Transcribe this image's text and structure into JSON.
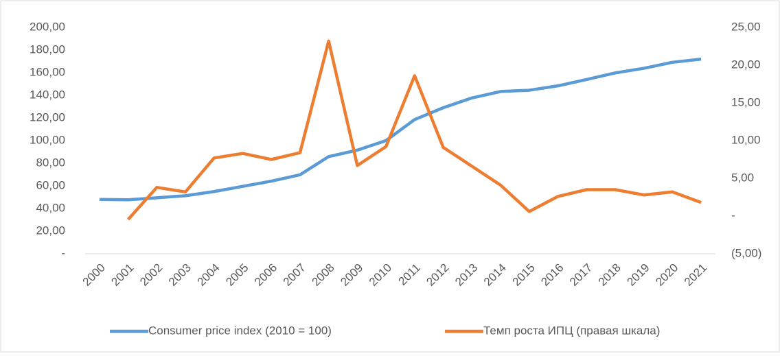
{
  "chart_data": {
    "type": "line",
    "categories": [
      "2000",
      "2001",
      "2002",
      "2003",
      "2004",
      "2005",
      "2006",
      "2007",
      "2008",
      "2009",
      "2010",
      "2011",
      "2012",
      "2013",
      "2014",
      "2015",
      "2016",
      "2017",
      "2018",
      "2019",
      "2020",
      "2021"
    ],
    "series": [
      {
        "name": "Consumer price index (2010 = 100)",
        "color": "#5b9bd5",
        "axis": "y",
        "values": [
          48,
          47.7,
          49.5,
          51.3,
          55,
          59.6,
          64.2,
          69.8,
          85.9,
          91.6,
          100,
          118.6,
          129.1,
          137.7,
          143.4,
          144.5,
          148.4,
          154.0,
          159.8,
          163.9,
          169.2,
          172.0
        ]
      },
      {
        "name": "Темп роста ИПЦ (правая шкала)",
        "color": "#ed7d31",
        "axis": "y2",
        "values": [
          null,
          -0.45,
          3.8,
          3.2,
          7.7,
          8.3,
          7.5,
          8.4,
          23.2,
          6.7,
          9.2,
          18.6,
          9.1,
          6.6,
          4.1,
          0.6,
          2.6,
          3.5,
          3.5,
          2.8,
          3.2,
          1.8
        ]
      }
    ],
    "ylim": [
      0,
      200
    ],
    "yticks": [
      {
        "value": 0,
        "label": "-"
      },
      {
        "value": 20,
        "label": "20,00"
      },
      {
        "value": 40,
        "label": "40,00"
      },
      {
        "value": 60,
        "label": "60,00"
      },
      {
        "value": 80,
        "label": "80,00"
      },
      {
        "value": 100,
        "label": "100,00"
      },
      {
        "value": 120,
        "label": "120,00"
      },
      {
        "value": 140,
        "label": "140,00"
      },
      {
        "value": 160,
        "label": "160,00"
      },
      {
        "value": 180,
        "label": "180,00"
      },
      {
        "value": 200,
        "label": "200,00"
      }
    ],
    "y2lim": [
      -5,
      25
    ],
    "y2ticks": [
      {
        "value": -5,
        "label": "(5,00)"
      },
      {
        "value": 0,
        "label": "-"
      },
      {
        "value": 5,
        "label": "5,00"
      },
      {
        "value": 10,
        "label": "10,00"
      },
      {
        "value": 15,
        "label": "15,00"
      },
      {
        "value": 20,
        "label": "20,00"
      },
      {
        "value": 25,
        "label": "25,00"
      }
    ],
    "grid": false,
    "legend": "bottom"
  }
}
